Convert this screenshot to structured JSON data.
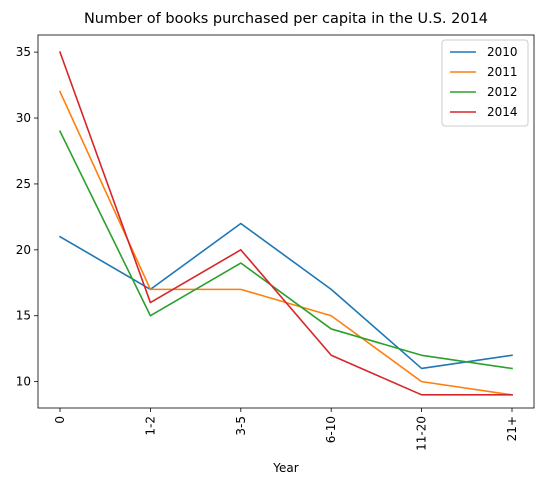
{
  "chart_data": {
    "type": "line",
    "title": "Number of books purchased per capita in the U.S. 2014",
    "xlabel": "Year",
    "ylabel": "",
    "categories": [
      "0",
      "1-2",
      "3-5",
      "6-10",
      "11-20",
      "21+"
    ],
    "series": [
      {
        "name": "2010",
        "color": "#1f77b4",
        "values": [
          21,
          17,
          22,
          17,
          11,
          12
        ]
      },
      {
        "name": "2011",
        "color": "#ff7f0e",
        "values": [
          32,
          17,
          17,
          15,
          10,
          9
        ]
      },
      {
        "name": "2012",
        "color": "#2ca02c",
        "values": [
          29,
          15,
          19,
          14,
          12,
          11
        ]
      },
      {
        "name": "2014",
        "color": "#d62728",
        "values": [
          35,
          16,
          20,
          12,
          9,
          9
        ]
      }
    ],
    "ylim": [
      8,
      36.3
    ],
    "yticks": [
      10,
      15,
      20,
      25,
      30,
      35
    ],
    "xtick_rotation": "vertical",
    "legend_position": "top-right",
    "grid": false
  }
}
